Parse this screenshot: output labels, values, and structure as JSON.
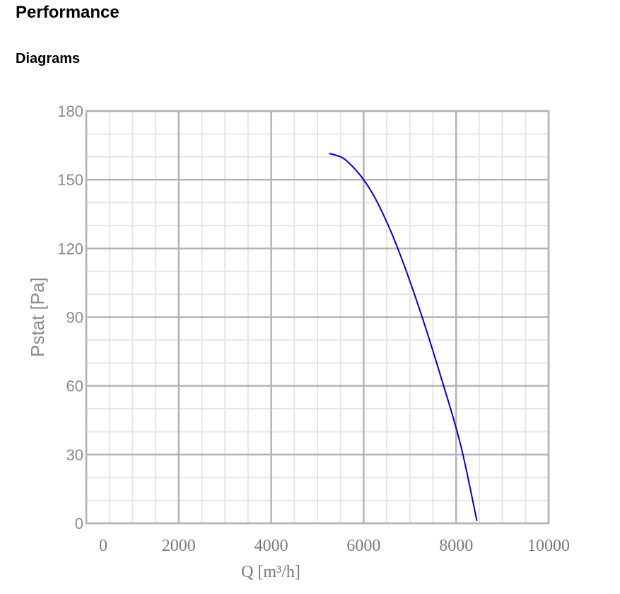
{
  "page": {
    "title": "Performance",
    "subtitle": "Diagrams"
  },
  "chart_data": {
    "type": "line",
    "xlabel": "Q [m³/h]",
    "ylabel": "Pstat [Pa]",
    "xlim": [
      0,
      10000
    ],
    "ylim": [
      0,
      180
    ],
    "x_ticks": [
      0,
      2000,
      4000,
      6000,
      8000,
      10000
    ],
    "y_ticks": [
      0,
      30,
      60,
      90,
      120,
      150,
      180
    ],
    "grid": true,
    "legend": "none",
    "series": [
      {
        "color": "#0000cc",
        "x": [
          5250,
          5500,
          5700,
          6000,
          6300,
          6700,
          7200,
          7700,
          8100,
          8450
        ],
        "y": [
          161.5,
          160,
          157,
          150,
          140,
          122,
          94,
          62,
          34,
          1
        ]
      }
    ]
  }
}
